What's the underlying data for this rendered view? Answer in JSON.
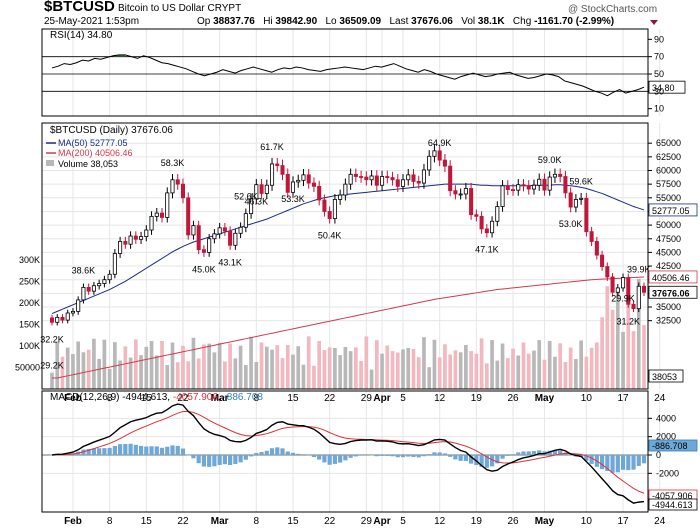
{
  "header": {
    "symbol": "$BTCUSD",
    "name": "Bitcoin to US Dollar  CRYPT",
    "date": "25-May-2021 1:53pm",
    "open_label": "Op",
    "open": "38837.76",
    "high_label": "Hi",
    "high": "39842.90",
    "low_label": "Lo",
    "low": "36509.09",
    "last_label": "Last",
    "last": "37676.06",
    "vol_label": "Vol",
    "vol": "38.1K",
    "chg_label": "Chg",
    "chg": "-1161.70 (-2.99%)",
    "brand": "@ StockCharts.com"
  },
  "colors": {
    "up": "#000000",
    "down": "#c0163b",
    "ma50": "#1a2a8a",
    "ma200": "#d23a4e",
    "vol_up": "#b8b8b8",
    "vol_down": "#f2b7bf",
    "rsi_fill": "#4f7f4f",
    "hist": "#6fa7d6"
  },
  "chart_data": [
    {
      "type": "line",
      "title": "RSI(14) 34.80",
      "indicator": "RSI(14)",
      "last_value": "34.80",
      "ylim": [
        0,
        100
      ],
      "ytick_labels": [
        "90",
        "70",
        "50",
        "30",
        "10"
      ],
      "ytick_values": [
        90,
        70,
        50,
        30,
        10
      ],
      "values": [
        57,
        59,
        62,
        61,
        63,
        66,
        65,
        68,
        67,
        69,
        71,
        72,
        72,
        70,
        68,
        71,
        69,
        66,
        63,
        62,
        60,
        58,
        56,
        53,
        50,
        48,
        50,
        52,
        55,
        53,
        51,
        54,
        56,
        58,
        56,
        54,
        52,
        55,
        57,
        56,
        58,
        57,
        55,
        54,
        53,
        55,
        56,
        57,
        58,
        57,
        56,
        55,
        57,
        59,
        58,
        60,
        62,
        59,
        56,
        54,
        52,
        55,
        53,
        50,
        48,
        46,
        44,
        47,
        49,
        51,
        49,
        47,
        48,
        50,
        51,
        52,
        49,
        47,
        45,
        46,
        48,
        50,
        49,
        47,
        42,
        40,
        38,
        36,
        33,
        30,
        28,
        25,
        29,
        32,
        28,
        30,
        32,
        34.8
      ]
    },
    {
      "type": "candlestick",
      "title": "$BTCUSD (Daily) 37676.06",
      "ylim": [
        22000,
        66500
      ],
      "ytick_values": [
        65000,
        62500,
        60000,
        57500,
        55000,
        52500,
        50000,
        47500,
        45000,
        42500,
        40000,
        37500,
        35000,
        32500
      ],
      "ytick_labels": [
        "65000",
        "62500",
        "60000",
        "57500",
        "55000",
        "52500",
        "50000",
        "47500",
        "45000",
        "42500",
        "40000",
        "37500",
        "35000",
        "32500"
      ],
      "x_labels": [
        "Feb",
        "8",
        "15",
        "22",
        "Mar",
        "8",
        "15",
        "22",
        "29",
        "Apr",
        "5",
        "12",
        "19",
        "26",
        "May",
        "10",
        "17",
        "24"
      ],
      "x_label_index": [
        4,
        11,
        18,
        25,
        32,
        39,
        46,
        53,
        60,
        63,
        67,
        74,
        81,
        88,
        94,
        102,
        109,
        116
      ],
      "close": [
        32200,
        33100,
        32600,
        33900,
        34200,
        36300,
        38600,
        37900,
        38900,
        39300,
        40000,
        41000,
        44800,
        47000,
        46500,
        48000,
        47400,
        47900,
        49100,
        51600,
        52200,
        51400,
        55900,
        58300,
        57500,
        55000,
        48200,
        49900,
        45500,
        45000,
        47500,
        48400,
        49500,
        48900,
        46300,
        48500,
        49600,
        52100,
        54800,
        57400,
        55800,
        57300,
        61200,
        60900,
        59300,
        56000,
        57900,
        58200,
        59200,
        57700,
        57100,
        54600,
        52500,
        51200,
        54700,
        55500,
        57500,
        59300,
        58900,
        58800,
        58300,
        59000,
        57300,
        58900,
        58700,
        58300,
        57100,
        58300,
        59200,
        58000,
        57700,
        60100,
        62600,
        63600,
        61900,
        60800,
        56300,
        55700,
        55700,
        56700,
        51900,
        51600,
        49300,
        48600,
        50700,
        53400,
        57200,
        56500,
        56400,
        57400,
        57200,
        56600,
        57300,
        58400,
        56400,
        58800,
        59300,
        58900,
        55900,
        53300,
        54700,
        54900,
        48800,
        47000,
        44500,
        42400,
        40500,
        37700,
        38500,
        40400,
        35500,
        34700,
        38800,
        37700
      ],
      "ma50": [
        33800,
        34200,
        34600,
        35000,
        35400,
        35800,
        36200,
        36600,
        37000,
        37400,
        37800,
        38200,
        38700,
        39200,
        39700,
        40300,
        40900,
        41500,
        42100,
        42700,
        43300,
        43900,
        44500,
        45100,
        45600,
        46100,
        46500,
        46900,
        47200,
        47500,
        47800,
        48100,
        48400,
        48700,
        49000,
        49300,
        49600,
        49900,
        50200,
        50500,
        50800,
        51100,
        51500,
        51900,
        52300,
        52700,
        53100,
        53500,
        53900,
        54200,
        54500,
        54800,
        55000,
        55200,
        55400,
        55500,
        55600,
        55700,
        55800,
        55900,
        56000,
        56100,
        56200,
        56300,
        56400,
        56500,
        56600,
        56700,
        56800,
        56900,
        57000,
        57100,
        57200,
        57300,
        57400,
        57500,
        57500,
        57500,
        57500,
        57500,
        57500,
        57400,
        57300,
        57300,
        57200,
        57200,
        57200,
        57200,
        57200,
        57200,
        57200,
        57200,
        57300,
        57300,
        57300,
        57300,
        57400,
        57400,
        57300,
        57200,
        57100,
        56900,
        56700,
        56400,
        56100,
        55800,
        55400,
        55000,
        54600,
        54200,
        53800,
        53400,
        53100,
        52777
      ],
      "ma200": [
        21800,
        22000,
        22200,
        22400,
        22600,
        22800,
        23000,
        23200,
        23400,
        23600,
        23800,
        24000,
        24200,
        24400,
        24600,
        24800,
        25000,
        25200,
        25400,
        25600,
        25800,
        26000,
        26200,
        26400,
        26600,
        26800,
        27000,
        27200,
        27400,
        27600,
        27800,
        28000,
        28200,
        28400,
        28600,
        28800,
        29000,
        29200,
        29400,
        29600,
        29800,
        30000,
        30200,
        30400,
        30600,
        30800,
        31000,
        31200,
        31400,
        31600,
        31800,
        32000,
        32200,
        32400,
        32600,
        32800,
        33000,
        33200,
        33400,
        33600,
        33800,
        34000,
        34200,
        34400,
        34600,
        34800,
        35000,
        35200,
        35400,
        35600,
        35800,
        36000,
        36200,
        36400,
        36550,
        36700,
        36850,
        37000,
        37150,
        37300,
        37450,
        37600,
        37750,
        37900,
        38050,
        38200,
        38300,
        38400,
        38500,
        38600,
        38700,
        38800,
        38900,
        39000,
        39100,
        39200,
        39300,
        39400,
        39500,
        39600,
        39700,
        39800,
        39900,
        40000,
        40050,
        40100,
        40150,
        40200,
        40250,
        40300,
        40350,
        40400,
        40450,
        40506
      ],
      "legend": [
        {
          "name": "$BTCUSD (Daily) 37676.06"
        },
        {
          "name": "MA(50) 52777.05"
        },
        {
          "name": "MA(200) 40506.46"
        },
        {
          "name": "Volume 38,053"
        }
      ],
      "annotations": [
        {
          "text": "38.6K",
          "index": 6
        },
        {
          "text": "32.2K",
          "index": 0
        },
        {
          "text": "29.2K",
          "index": 0
        },
        {
          "text": "58.3K",
          "index": 23
        },
        {
          "text": "45.0K",
          "index": 29
        },
        {
          "text": "43.1K",
          "index": 34
        },
        {
          "text": "52.6K",
          "index": 37
        },
        {
          "text": "46.3K",
          "index": 39
        },
        {
          "text": "61.7K",
          "index": 42
        },
        {
          "text": "53.3K",
          "index": 46
        },
        {
          "text": "50.4K",
          "index": 53
        },
        {
          "text": "64.9K",
          "index": 74
        },
        {
          "text": "47.1K",
          "index": 83
        },
        {
          "text": "59.0K",
          "index": 95
        },
        {
          "text": "53.0K",
          "index": 99
        },
        {
          "text": "59.6K",
          "index": 101
        },
        {
          "text": "39.9K",
          "index": 112
        },
        {
          "text": "31.2K",
          "index": 110
        },
        {
          "text": "29.9K",
          "index": 109
        }
      ],
      "right_labels": [
        "52777.05",
        "40506.46",
        "37676.06",
        "38053"
      ]
    },
    {
      "type": "bar",
      "title": "Volume 38,053",
      "volume_tick_labels": [
        "300K",
        "250K",
        "200K",
        "150K",
        "100K",
        "50000"
      ],
      "volume_tick_values": [
        300000,
        250000,
        200000,
        150000,
        100000,
        50000
      ],
      "last_value": "38053"
    },
    {
      "type": "line",
      "title": "MACD(12,26,9) -4944.613, -4057.906, -886.708",
      "indicator": "MACD(12,26,9)",
      "macd_last": "-4944.613",
      "signal_last": "-4057.906",
      "hist_last": "-886.708",
      "ylim": [
        -6000,
        6000
      ],
      "ytick_labels": [
        "4000",
        "2000",
        "0",
        "-2000"
      ],
      "ytick_values": [
        4000,
        2000,
        0,
        -2000
      ],
      "right_labels": [
        "-886.708",
        "-4057.906",
        "-4944.613"
      ]
    }
  ]
}
